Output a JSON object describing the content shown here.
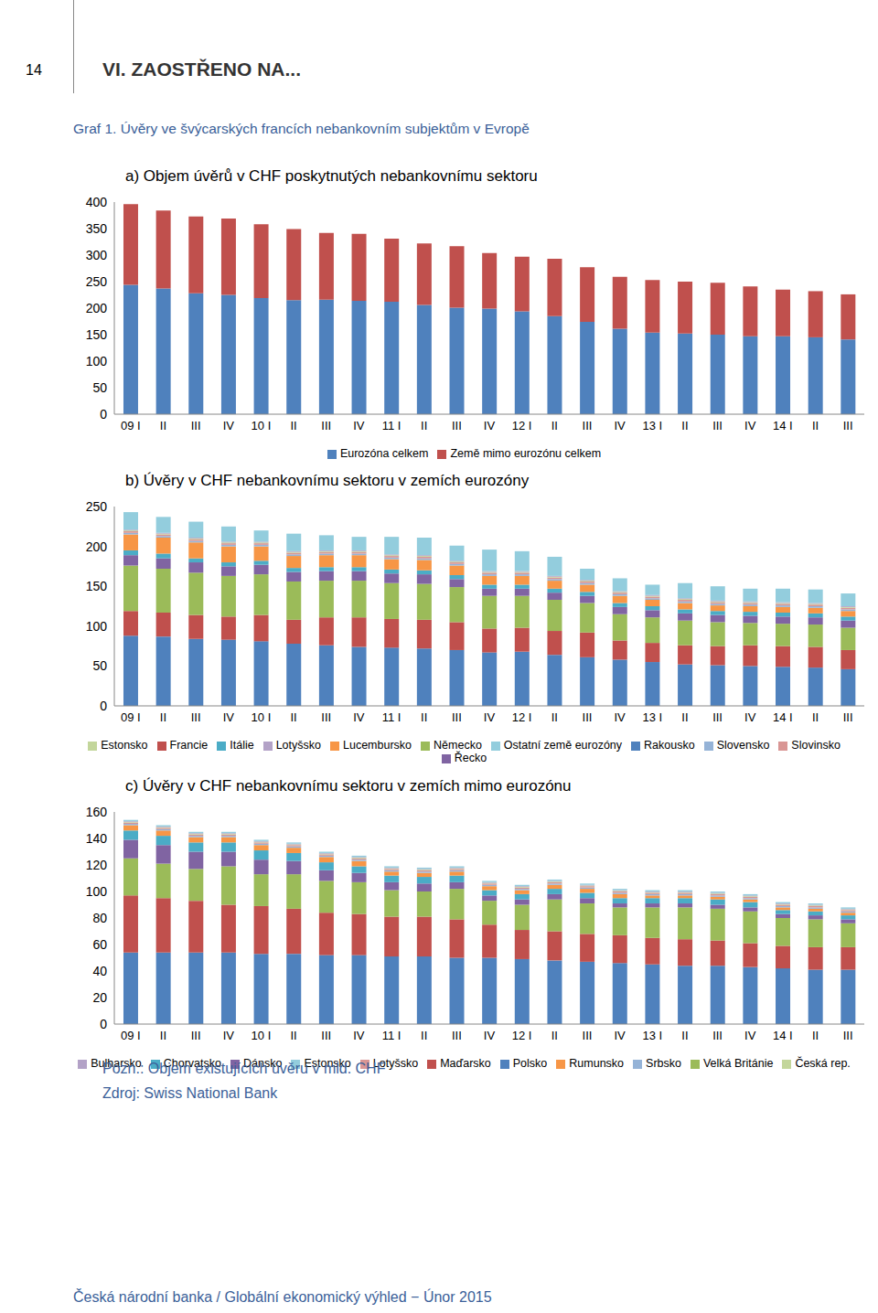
{
  "page_number": "14",
  "section": "VI. ZAOSTŘENO NA...",
  "figure_title": "Graf 1. Úvěry ve švýcarských francích nebankovním subjektům v Evropě",
  "chart_data": [
    {
      "type": "bar",
      "title": "a) Objem úvěrů v CHF poskytnutých nebankovnímu sektoru",
      "stacked": true,
      "grid": false,
      "legend": "bottom",
      "categories": [
        "09 I",
        "II",
        "III",
        "IV",
        "10 I",
        "II",
        "III",
        "IV",
        "11 I",
        "II",
        "III",
        "IV",
        "12 I",
        "II",
        "III",
        "IV",
        "13 I",
        "II",
        "III",
        "IV",
        "14 I",
        "II",
        "III"
      ],
      "ylim": [
        0,
        400
      ],
      "yticks": [
        0,
        50,
        100,
        150,
        200,
        250,
        300,
        350,
        400
      ],
      "series": [
        {
          "name": "Eurozóna celkem",
          "color": "#4f81bd",
          "values": [
            244,
            237,
            228,
            225,
            219,
            215,
            216,
            214,
            212,
            206,
            201,
            199,
            194,
            185,
            174,
            161,
            154,
            152,
            150,
            147,
            147,
            145,
            141
          ]
        },
        {
          "name": "Země mimo eurozónu celkem",
          "color": "#c0504d",
          "values": [
            152,
            147,
            145,
            144,
            139,
            134,
            126,
            126,
            119,
            116,
            116,
            105,
            103,
            108,
            103,
            98,
            99,
            98,
            98,
            94,
            88,
            87,
            85
          ]
        }
      ]
    },
    {
      "type": "bar",
      "title": "b) Úvěry v CHF nebankovnímu sektoru v zemích eurozóny",
      "stacked": true,
      "grid": false,
      "legend": "bottom",
      "categories": [
        "09 I",
        "II",
        "III",
        "IV",
        "10 I",
        "II",
        "III",
        "IV",
        "11 I",
        "II",
        "III",
        "IV",
        "12 I",
        "II",
        "III",
        "IV",
        "13 I",
        "II",
        "III",
        "IV",
        "14 I",
        "II",
        "III"
      ],
      "ylim": [
        0,
        250
      ],
      "yticks": [
        0,
        50,
        100,
        150,
        200,
        250
      ],
      "series": [
        {
          "name": "Rakousko",
          "color": "#4f81bd",
          "values": [
            88,
            87,
            84,
            83,
            81,
            78,
            76,
            74,
            73,
            72,
            70,
            67,
            68,
            64,
            61,
            58,
            55,
            52,
            51,
            50,
            49,
            48,
            46
          ]
        },
        {
          "name": "Francie",
          "color": "#c0504d",
          "values": [
            31,
            30,
            30,
            29,
            33,
            30,
            35,
            37,
            36,
            36,
            35,
            30,
            30,
            30,
            31,
            24,
            24,
            24,
            24,
            26,
            26,
            26,
            24
          ]
        },
        {
          "name": "Německo",
          "color": "#9bbb59",
          "values": [
            57,
            55,
            53,
            51,
            51,
            48,
            46,
            46,
            45,
            45,
            44,
            41,
            40,
            39,
            37,
            33,
            32,
            31,
            30,
            28,
            28,
            28,
            28
          ]
        },
        {
          "name": "Řecko",
          "color": "#8064a2",
          "values": [
            13,
            13,
            13,
            12,
            12,
            12,
            12,
            12,
            12,
            12,
            10,
            9,
            9,
            9,
            9,
            9,
            9,
            9,
            9,
            9,
            9,
            9,
            9
          ]
        },
        {
          "name": "Itálie",
          "color": "#4bacc6",
          "values": [
            6,
            6,
            5,
            5,
            5,
            5,
            5,
            5,
            5,
            5,
            5,
            5,
            5,
            5,
            5,
            5,
            5,
            5,
            5,
            5,
            5,
            5,
            5
          ]
        },
        {
          "name": "Lucembursko",
          "color": "#f79646",
          "values": [
            20,
            20,
            20,
            20,
            18,
            15,
            15,
            15,
            13,
            13,
            12,
            11,
            11,
            10,
            9,
            9,
            8,
            8,
            7,
            7,
            7,
            7,
            7
          ]
        },
        {
          "name": "Slovensko",
          "color": "#95b3d7",
          "values": [
            2,
            2,
            2,
            2,
            2,
            2,
            2,
            2,
            2,
            2,
            2,
            2,
            2,
            2,
            2,
            2,
            2,
            2,
            2,
            2,
            2,
            2,
            2
          ]
        },
        {
          "name": "Slovinsko",
          "color": "#d99694",
          "values": [
            2,
            2,
            2,
            2,
            2,
            2,
            2,
            2,
            2,
            2,
            2,
            2,
            2,
            2,
            2,
            2,
            2,
            2,
            2,
            2,
            2,
            2,
            2
          ]
        },
        {
          "name": "Estonsko",
          "color": "#c3d69b",
          "values": [
            1,
            1,
            1,
            1,
            1,
            1,
            1,
            1,
            1,
            1,
            1,
            1,
            1,
            1,
            1,
            1,
            1,
            1,
            1,
            1,
            1,
            1,
            1
          ]
        },
        {
          "name": "Lotyšsko",
          "color": "#b3a2c7",
          "values": [
            1,
            1,
            1,
            1,
            1,
            1,
            1,
            1,
            1,
            1,
            1,
            1,
            1,
            1,
            1,
            1,
            1,
            1,
            1,
            1,
            1,
            1,
            1
          ]
        },
        {
          "name": "Ostatní země eurozóny",
          "color": "#93cddd",
          "values": [
            22,
            20,
            20,
            19,
            14,
            22,
            19,
            17,
            22,
            22,
            19,
            27,
            25,
            24,
            14,
            16,
            13,
            19,
            18,
            16,
            17,
            17,
            16
          ]
        }
      ]
    },
    {
      "type": "bar",
      "title": "c) Úvěry v CHF nebankovnímu sektoru v zemích mimo eurozónu",
      "stacked": true,
      "grid": false,
      "legend": "bottom",
      "categories": [
        "09 I",
        "II",
        "III",
        "IV",
        "10 I",
        "II",
        "III",
        "IV",
        "11 I",
        "II",
        "III",
        "IV",
        "12 I",
        "II",
        "III",
        "IV",
        "13 I",
        "II",
        "III",
        "IV",
        "14 I",
        "II",
        "III"
      ],
      "ylim": [
        0,
        160
      ],
      "yticks": [
        0,
        20,
        40,
        60,
        80,
        100,
        120,
        140,
        160
      ],
      "series": [
        {
          "name": "Polsko",
          "color": "#4f81bd",
          "values": [
            54,
            54,
            54,
            54,
            53,
            53,
            52,
            52,
            51,
            51,
            50,
            50,
            49,
            48,
            47,
            46,
            45,
            44,
            44,
            43,
            42,
            41,
            41
          ]
        },
        {
          "name": "Maďarsko",
          "color": "#c0504d",
          "values": [
            43,
            41,
            39,
            36,
            36,
            34,
            32,
            31,
            30,
            30,
            29,
            25,
            22,
            22,
            21,
            21,
            20,
            20,
            19,
            18,
            17,
            17,
            17
          ]
        },
        {
          "name": "Velká Británie",
          "color": "#9bbb59",
          "values": [
            28,
            26,
            24,
            29,
            24,
            26,
            24,
            24,
            20,
            19,
            23,
            18,
            19,
            24,
            23,
            21,
            23,
            24,
            24,
            24,
            21,
            21,
            18
          ]
        },
        {
          "name": "Dánsko",
          "color": "#8064a2",
          "values": [
            14,
            14,
            13,
            11,
            11,
            10,
            8,
            7,
            6,
            6,
            5,
            4,
            4,
            4,
            4,
            3,
            3,
            3,
            3,
            3,
            3,
            3,
            3
          ]
        },
        {
          "name": "Chorvatsko",
          "color": "#4bacc6",
          "values": [
            7,
            7,
            7,
            7,
            7,
            6,
            6,
            5,
            5,
            5,
            5,
            4,
            4,
            4,
            4,
            4,
            4,
            4,
            4,
            4,
            3,
            3,
            3
          ]
        },
        {
          "name": "Rumunsko",
          "color": "#f79646",
          "values": [
            4,
            4,
            4,
            4,
            4,
            4,
            4,
            4,
            3,
            3,
            3,
            3,
            3,
            3,
            3,
            3,
            2,
            2,
            2,
            2,
            2,
            2,
            2
          ]
        },
        {
          "name": "Srbsko",
          "color": "#95b3d7",
          "values": [
            1,
            1,
            1,
            1,
            1,
            1,
            1,
            1,
            1,
            1,
            1,
            1,
            1,
            1,
            1,
            1,
            1,
            1,
            1,
            1,
            1,
            1,
            1
          ]
        },
        {
          "name": "Lotyšsko",
          "color": "#d99694",
          "values": [
            1,
            1,
            1,
            1,
            1,
            1,
            1,
            1,
            1,
            1,
            1,
            1,
            1,
            1,
            1,
            1,
            1,
            1,
            1,
            1,
            1,
            1,
            1
          ]
        },
        {
          "name": "Česká rep.",
          "color": "#c3d69b",
          "values": [
            0.5,
            0.5,
            0.5,
            0.5,
            0.5,
            0.5,
            0.5,
            0.5,
            0.5,
            0.5,
            0.5,
            0.5,
            0.5,
            0.5,
            0.5,
            0.5,
            0.5,
            0.5,
            0.5,
            0.5,
            0.5,
            0.5,
            0.5
          ]
        },
        {
          "name": "Bulharsko",
          "color": "#b3a2c7",
          "values": [
            0.5,
            0.5,
            0.5,
            0.5,
            0.5,
            0.5,
            0.5,
            0.5,
            0.5,
            0.5,
            0.5,
            0.5,
            0.5,
            0.5,
            0.5,
            0.5,
            0.5,
            0.5,
            0.5,
            0.5,
            0.5,
            0.5,
            0.5
          ]
        },
        {
          "name": "Estonsko",
          "color": "#93cddd",
          "values": [
            1,
            1,
            1,
            1,
            1,
            1,
            1,
            1,
            1,
            1,
            1,
            1,
            1,
            1,
            1,
            1,
            1,
            1,
            1,
            1,
            1,
            1,
            1
          ]
        }
      ]
    }
  ],
  "note": "Pozn.: Objem existujících úvěru v mld. CHF",
  "source": "Zdroj: Swiss National Bank",
  "footer": "Česká národní banka / Globální ekonomický výhled − Únor 2015"
}
